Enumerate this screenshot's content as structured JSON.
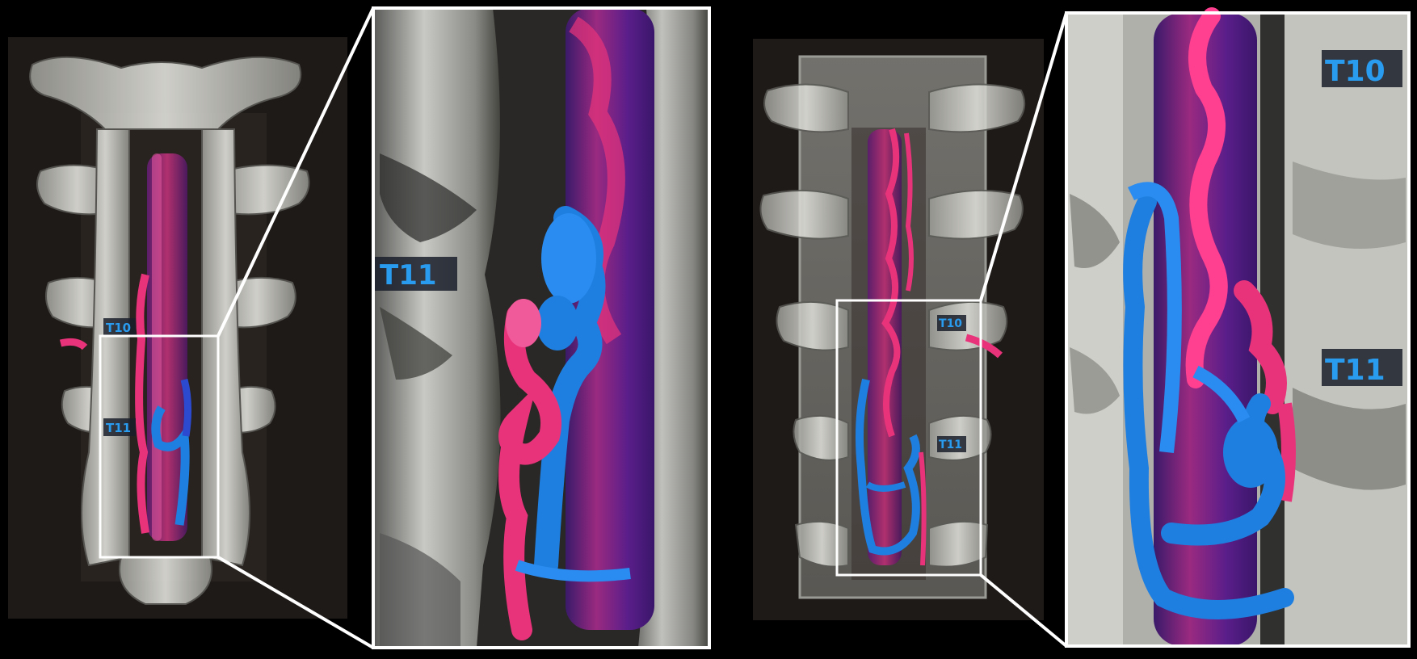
{
  "figure": {
    "labels": {
      "left_overview_upper": "T10",
      "left_overview_lower": "T11",
      "left_zoom": "T11",
      "right_overview_upper": "T10",
      "right_overview_lower": "T11",
      "right_zoom_upper": "T10",
      "right_zoom_lower": "T11"
    },
    "colors": {
      "background": "#000000",
      "resin": "#d8d8d0",
      "artery": "#e8337a",
      "vein": "#1f7fe0",
      "cord": "#8a2a7a",
      "label": "#2a9cf0",
      "frame": "#ffffff"
    }
  }
}
